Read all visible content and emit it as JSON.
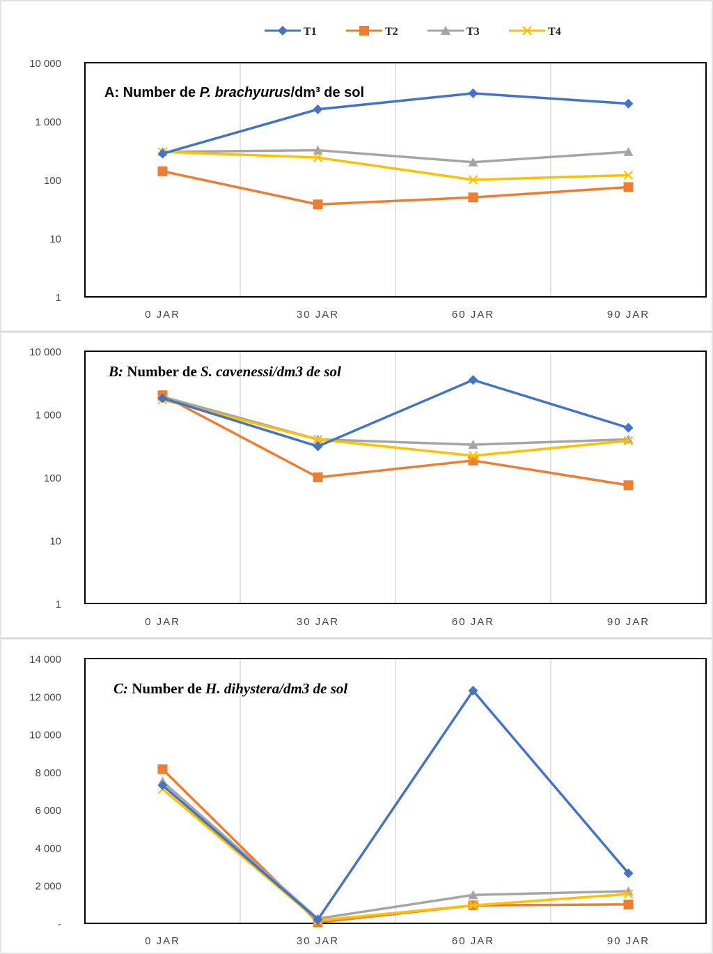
{
  "legend": {
    "entries": [
      {
        "name": "T1",
        "color": "#4472C4",
        "marker": "diamond"
      },
      {
        "name": "T2",
        "color": "#ED7D31",
        "marker": "square"
      },
      {
        "name": "T3",
        "color": "#A5A5A5",
        "marker": "triangle"
      },
      {
        "name": "T4",
        "color": "#FFC000",
        "marker": "x"
      }
    ],
    "position": "top"
  },
  "chart_data": [
    {
      "type": "line",
      "scale": "log",
      "title": {
        "label": "A:",
        "text1": "Number de ",
        "species": "P. brachyurus",
        "text2": "/dm³ de sol"
      },
      "categories": [
        "0 JAR",
        "30 JAR",
        "60 JAR",
        "90 JAR"
      ],
      "ylim": [
        1,
        10000
      ],
      "yticks": [
        "1",
        "10",
        "100",
        "1 000",
        "10 000"
      ],
      "grid": "vertical",
      "series": [
        {
          "name": "T1",
          "values": [
            280,
            1600,
            3000,
            2000
          ]
        },
        {
          "name": "T2",
          "values": [
            140,
            38,
            50,
            75
          ]
        },
        {
          "name": "T3",
          "values": [
            300,
            320,
            200,
            300
          ]
        },
        {
          "name": "T4",
          "values": [
            300,
            240,
            100,
            120
          ]
        }
      ]
    },
    {
      "type": "line",
      "scale": "log",
      "title": {
        "label": "B:",
        "text1": "Number de ",
        "species": "S. cavenessi/dm3 de sol",
        "text2": ""
      },
      "categories": [
        "0 JAR",
        "30 JAR",
        "60 JAR",
        "90 JAR"
      ],
      "ylim": [
        1,
        10000
      ],
      "yticks": [
        "1",
        "10",
        "100",
        "1 000",
        "10 000"
      ],
      "grid": "vertical",
      "series": [
        {
          "name": "T1",
          "values": [
            1800,
            310,
            3500,
            610
          ]
        },
        {
          "name": "T2",
          "values": [
            2000,
            100,
            185,
            75
          ]
        },
        {
          "name": "T3",
          "values": [
            1900,
            400,
            330,
            400
          ]
        },
        {
          "name": "T4",
          "values": [
            1700,
            400,
            220,
            380
          ]
        }
      ]
    },
    {
      "type": "line",
      "scale": "linear",
      "title": {
        "label": "C:",
        "text1": "Number de ",
        "species": "H. dihystera/dm3 de sol",
        "text2": ""
      },
      "categories": [
        "0 JAR",
        "30 JAR",
        "60 JAR",
        "90 JAR"
      ],
      "ylim": [
        0,
        14000
      ],
      "yticks": [
        "-",
        "2 000",
        "4 000",
        "6 000",
        "8 000",
        "10 000",
        "12 000",
        "14 000"
      ],
      "grid": "vertical",
      "series": [
        {
          "name": "T1",
          "values": [
            7300,
            200,
            12300,
            2650
          ]
        },
        {
          "name": "T2",
          "values": [
            8150,
            50,
            950,
            1000
          ]
        },
        {
          "name": "T3",
          "values": [
            7500,
            250,
            1500,
            1700
          ]
        },
        {
          "name": "T4",
          "values": [
            7100,
            150,
            950,
            1550
          ]
        }
      ]
    }
  ]
}
